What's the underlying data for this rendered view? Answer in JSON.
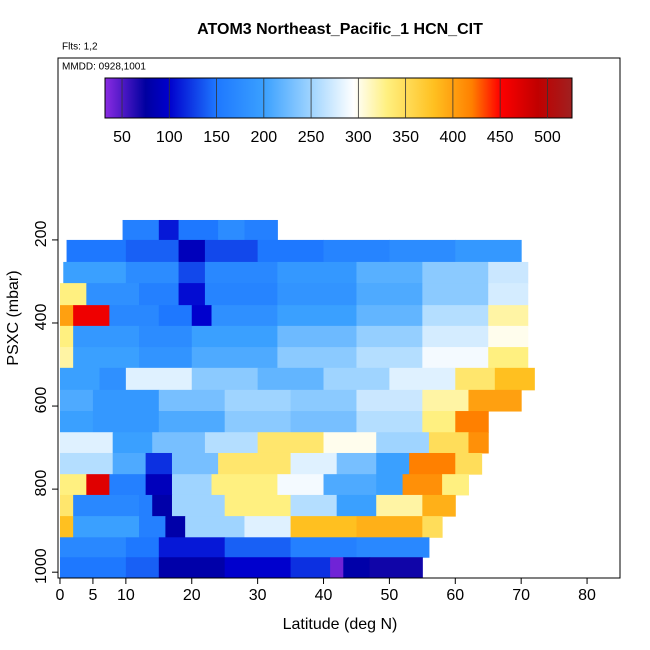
{
  "chart_data": {
    "type": "curtain",
    "title": "ATOM3 Northeast_Pacific_1 HCN_CIT",
    "subtitle": "Flts: 1,2",
    "annotation": "MMDD: 0928,1001",
    "x_label": "Latitude (deg N)",
    "y_label": "PSXC (mbar)",
    "xlim": [
      -0.3,
      85
    ],
    "ylim": [
      1014,
      -238
    ],
    "xticks": [
      0,
      5,
      10,
      20,
      30,
      40,
      50,
      60,
      70,
      80
    ],
    "yticks": [
      200,
      400,
      600,
      800,
      1000
    ],
    "clim": [
      32,
      526
    ],
    "cticks": [
      50,
      100,
      150,
      200,
      250,
      300,
      350,
      400,
      450,
      500
    ],
    "colorscale": [
      [
        32,
        "#8a2be2"
      ],
      [
        75,
        "#0000a0"
      ],
      [
        100,
        "#0000cd"
      ],
      [
        150,
        "#1e78ff"
      ],
      [
        200,
        "#3aa0ff"
      ],
      [
        250,
        "#9fd4ff"
      ],
      [
        295,
        "#ffffff"
      ],
      [
        330,
        "#fff080"
      ],
      [
        380,
        "#ffc020"
      ],
      [
        420,
        "#ff8000"
      ],
      [
        450,
        "#ff0000"
      ],
      [
        490,
        "#c00000"
      ],
      [
        526,
        "#a02020"
      ]
    ],
    "layers": [
      {
        "p": [
          152,
          200
        ],
        "lat": [
          9.5,
          15,
          18,
          24,
          28,
          33
        ],
        "values": [
          160,
          110,
          150,
          175,
          160
        ]
      },
      {
        "p": [
          200,
          253
        ],
        "lat": [
          1,
          10,
          18,
          22,
          30,
          40,
          50,
          60,
          70
        ],
        "values": [
          150,
          140,
          90,
          130,
          150,
          165,
          175,
          190
        ]
      },
      {
        "p": [
          253,
          304
        ],
        "lat": [
          0.5,
          10,
          18,
          22,
          33,
          45,
          55,
          65,
          71
        ],
        "values": [
          200,
          175,
          130,
          170,
          190,
          215,
          240,
          270
        ]
      },
      {
        "p": [
          304,
          357
        ],
        "lat": [
          0,
          4,
          12,
          18,
          22,
          33,
          45,
          55,
          65,
          71
        ],
        "values": [
          330,
          180,
          160,
          105,
          165,
          185,
          210,
          240,
          275
        ]
      },
      {
        "p": [
          357,
          407
        ],
        "lat": [
          0,
          2,
          7.5,
          15,
          20,
          23,
          33,
          45,
          55,
          65,
          71
        ],
        "values": [
          400,
          460,
          170,
          150,
          100,
          180,
          200,
          220,
          260,
          320
        ]
      },
      {
        "p": [
          407,
          458
        ],
        "lat": [
          0,
          2,
          12,
          20,
          33,
          45,
          55,
          65,
          71
        ],
        "values": [
          330,
          190,
          175,
          200,
          225,
          245,
          275,
          300
        ]
      },
      {
        "p": [
          458,
          508
        ],
        "lat": [
          0,
          2,
          12,
          20,
          33,
          45,
          55,
          65,
          71
        ],
        "values": [
          320,
          200,
          185,
          210,
          240,
          260,
          290,
          330
        ]
      },
      {
        "p": [
          508,
          561
        ],
        "lat": [
          0,
          6,
          10,
          20,
          30,
          40,
          50,
          60,
          66,
          72
        ],
        "values": [
          200,
          180,
          280,
          240,
          220,
          250,
          280,
          340,
          380
        ]
      },
      {
        "p": [
          561,
          612
        ],
        "lat": [
          0,
          5,
          15,
          25,
          35,
          45,
          55,
          62,
          70
        ],
        "values": [
          210,
          190,
          230,
          250,
          240,
          270,
          320,
          400
        ]
      },
      {
        "p": [
          612,
          663
        ],
        "lat": [
          0,
          5,
          15,
          25,
          35,
          45,
          55,
          60,
          65
        ],
        "values": [
          200,
          190,
          210,
          240,
          230,
          260,
          330,
          420
        ]
      },
      {
        "p": [
          663,
          713
        ],
        "lat": [
          0,
          8,
          14,
          22,
          30,
          40,
          48,
          56,
          62,
          65
        ],
        "values": [
          280,
          200,
          230,
          260,
          340,
          300,
          250,
          350,
          410
        ]
      },
      {
        "p": [
          713,
          764
        ],
        "lat": [
          0,
          8,
          13,
          17,
          24,
          35,
          42,
          48,
          53,
          60,
          64
        ],
        "values": [
          260,
          210,
          120,
          230,
          340,
          280,
          230,
          200,
          420,
          350
        ]
      },
      {
        "p": [
          764,
          814
        ],
        "lat": [
          0,
          4,
          7.5,
          13,
          17,
          23,
          33,
          40,
          48,
          52,
          58,
          62
        ],
        "values": [
          330,
          470,
          160,
          90,
          250,
          330,
          290,
          210,
          200,
          410,
          330
        ]
      },
      {
        "p": [
          814,
          865
        ],
        "lat": [
          0,
          2,
          12,
          14,
          17,
          25,
          35,
          42,
          48,
          55,
          60
        ],
        "values": [
          340,
          170,
          160,
          80,
          250,
          330,
          260,
          200,
          320,
          390
        ]
      },
      {
        "p": [
          865,
          916
        ],
        "lat": [
          0,
          2,
          12,
          16,
          19,
          28,
          35,
          45,
          55,
          58
        ],
        "values": [
          380,
          200,
          160,
          80,
          250,
          280,
          380,
          390,
          350
        ]
      },
      {
        "p": [
          916,
          964
        ],
        "lat": [
          0,
          10,
          15,
          25,
          35,
          45,
          56
        ],
        "values": [
          170,
          150,
          110,
          140,
          160,
          170
        ]
      },
      {
        "p": [
          964,
          1012
        ],
        "lat": [
          0,
          10,
          15,
          25,
          35,
          41,
          43,
          47,
          55
        ],
        "values": [
          150,
          140,
          80,
          100,
          120,
          40,
          80,
          70
        ]
      }
    ]
  }
}
